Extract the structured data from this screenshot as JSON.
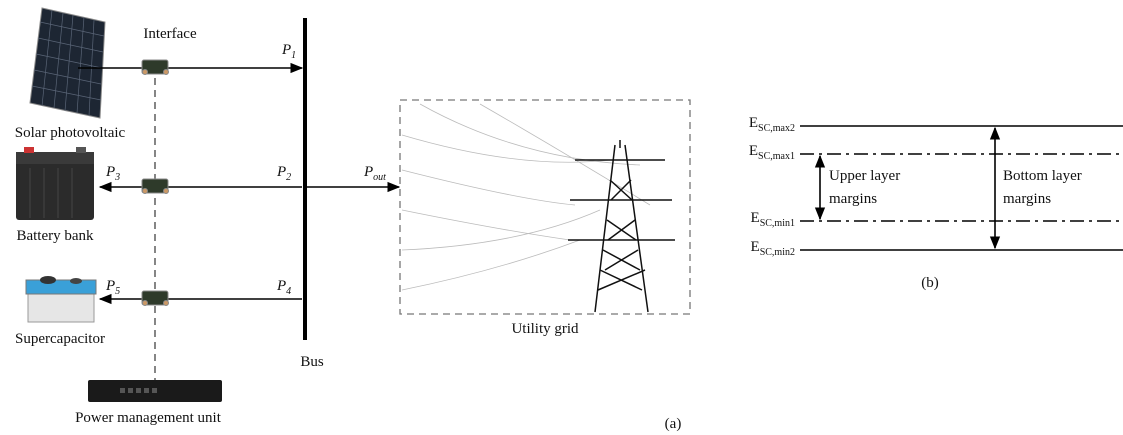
{
  "panel_a": {
    "interface_label": "Interface",
    "sources": [
      {
        "name": "Solar photovoltaic",
        "power": {
          "main": "P",
          "sub": "1"
        }
      },
      {
        "name": "Battery bank",
        "power_source": {
          "main": "P",
          "sub": "3"
        },
        "power_bus": {
          "main": "P",
          "sub": "2"
        }
      },
      {
        "name": "Supercapacitor",
        "power_source": {
          "main": "P",
          "sub": "5"
        },
        "power_bus": {
          "main": "P",
          "sub": "4"
        }
      }
    ],
    "output_power": {
      "main": "P",
      "sub": "out"
    },
    "bus_label": "Bus",
    "grid_label": "Utility grid",
    "pmu_label": "Power management unit",
    "caption": "(a)"
  },
  "panel_b": {
    "levels": [
      {
        "main": "E",
        "sub": "SC,max2"
      },
      {
        "main": "E",
        "sub": "SC,max1"
      },
      {
        "main": "E",
        "sub": "SC,min1"
      },
      {
        "main": "E",
        "sub": "SC,min2"
      }
    ],
    "upper_margin": [
      "Upper layer",
      "margins"
    ],
    "bottom_margin": [
      "Bottom layer",
      "margins"
    ],
    "caption": "(b)"
  }
}
